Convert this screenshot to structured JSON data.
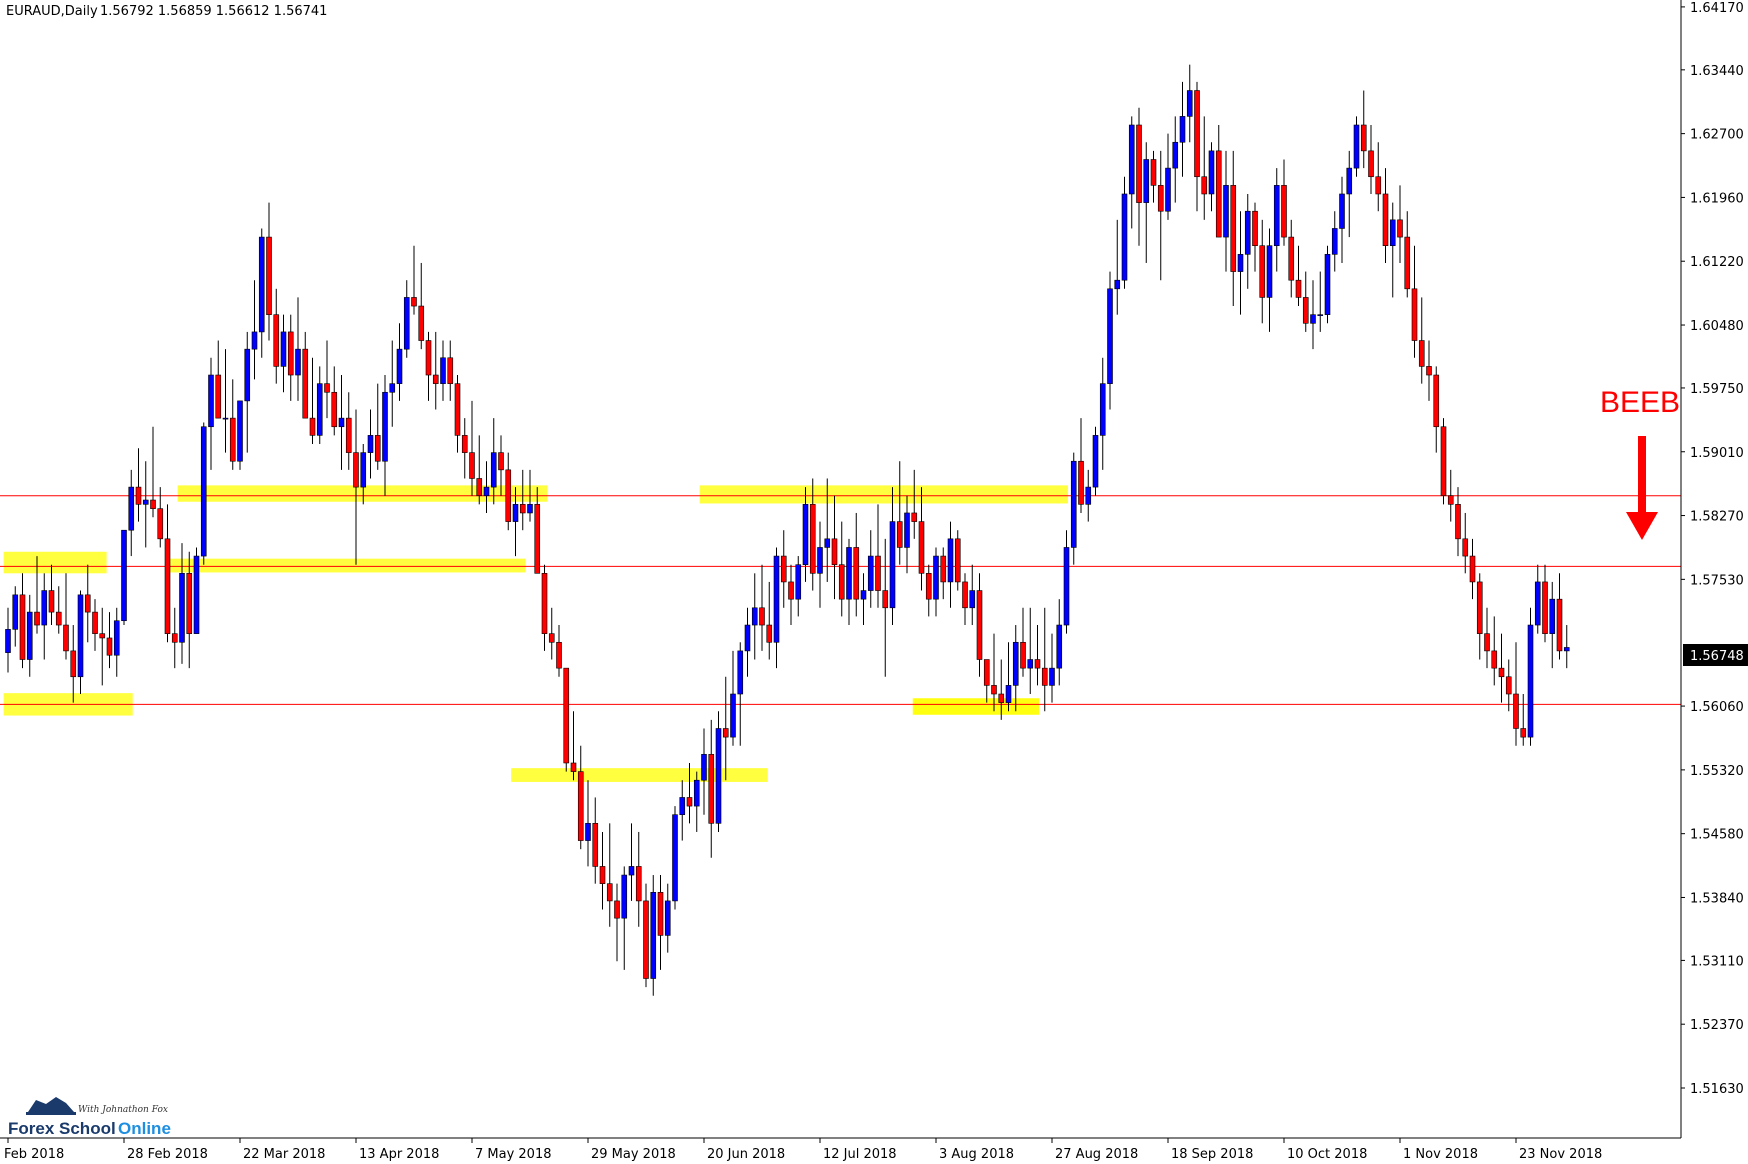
{
  "header": {
    "symbol_tf": "EURAUD,Daily",
    "ohlc": "1.56792 1.56859 1.56612 1.56741"
  },
  "annotation": {
    "text": "BEEB",
    "color": "#ff0000"
  },
  "current_price": "1.56748",
  "brand": {
    "name_dark": "Forex School",
    "name_light": "Online",
    "tagline": "With Johnathon Fox"
  },
  "colors": {
    "bull": "#0000ff",
    "bear": "#ff0000",
    "outline": "#000000",
    "level_line": "#ff0000",
    "zone": "#ffff00"
  },
  "chart_data": {
    "type": "candlestick",
    "symbol": "EURAUD",
    "timeframe": "Daily",
    "ylim": [
      1.5105,
      1.6425
    ],
    "y_ticks": [
      "1.64170",
      "1.63440",
      "1.62700",
      "1.61960",
      "1.61220",
      "1.60480",
      "1.59750",
      "1.59010",
      "1.58270",
      "1.57530",
      "1.56748",
      "1.56060",
      "1.55320",
      "1.54580",
      "1.53840",
      "1.53110",
      "1.52370",
      "1.51630"
    ],
    "x_ticks": [
      {
        "label": "Feb 2018",
        "bar": 0
      },
      {
        "label": "28 Feb 2018",
        "bar": 16
      },
      {
        "label": "22 Mar 2018",
        "bar": 32
      },
      {
        "label": "13 Apr 2018",
        "bar": 48
      },
      {
        "label": "7 May 2018",
        "bar": 64
      },
      {
        "label": "29 May 2018",
        "bar": 80
      },
      {
        "label": "20 Jun 2018",
        "bar": 96
      },
      {
        "label": "12 Jul 2018",
        "bar": 112
      },
      {
        "label": "3 Aug 2018",
        "bar": 128
      },
      {
        "label": "27 Aug 2018",
        "bar": 144
      },
      {
        "label": "18 Sep 2018",
        "bar": 160
      },
      {
        "label": "10 Oct 2018",
        "bar": 176
      },
      {
        "label": "1 Nov 2018",
        "bar": 192
      },
      {
        "label": "23 Nov 2018",
        "bar": 208
      }
    ],
    "levels": [
      1.585,
      1.5768,
      1.5608
    ],
    "zones": [
      {
        "bar_from": -0.6,
        "bar_to": 13.6,
        "low": 1.576,
        "high": 1.5785
      },
      {
        "bar_from": -0.6,
        "bar_to": 17.2,
        "low": 1.5595,
        "high": 1.5621
      },
      {
        "bar_from": 23.4,
        "bar_to": 74.4,
        "low": 1.5843,
        "high": 1.5862
      },
      {
        "bar_from": 22.0,
        "bar_to": 71.4,
        "low": 1.5761,
        "high": 1.5777
      },
      {
        "bar_from": 69.4,
        "bar_to": 104.8,
        "low": 1.5518,
        "high": 1.5534
      },
      {
        "bar_from": 95.4,
        "bar_to": 146.2,
        "low": 1.5841,
        "high": 1.5862
      },
      {
        "bar_from": 124.8,
        "bar_to": 142.2,
        "low": 1.5596,
        "high": 1.5615
      },
      {
        "bar_from": 124.8,
        "bar_to": 142.2,
        "low": 1.5596,
        "high": 1.5615
      }
    ],
    "ohlc": [
      [
        1.5668,
        1.572,
        1.5645,
        1.5695
      ],
      [
        1.5695,
        1.5745,
        1.5675,
        1.5735
      ],
      [
        1.5735,
        1.576,
        1.565,
        1.566
      ],
      [
        1.566,
        1.5735,
        1.564,
        1.5715
      ],
      [
        1.5715,
        1.578,
        1.569,
        1.57
      ],
      [
        1.57,
        1.576,
        1.566,
        1.574
      ],
      [
        1.574,
        1.577,
        1.57,
        1.5715
      ],
      [
        1.5715,
        1.5745,
        1.569,
        1.57
      ],
      [
        1.57,
        1.576,
        1.566,
        1.567
      ],
      [
        1.567,
        1.57,
        1.561,
        1.564
      ],
      [
        1.564,
        1.574,
        1.562,
        1.5735
      ],
      [
        1.5735,
        1.577,
        1.568,
        1.5715
      ],
      [
        1.5715,
        1.573,
        1.567,
        1.569
      ],
      [
        1.569,
        1.572,
        1.563,
        1.5685
      ],
      [
        1.5685,
        1.5715,
        1.565,
        1.5665
      ],
      [
        1.5665,
        1.572,
        1.564,
        1.5705
      ],
      [
        1.5705,
        1.581,
        1.57,
        1.581
      ],
      [
        1.581,
        1.588,
        1.578,
        1.586
      ],
      [
        1.586,
        1.5905,
        1.582,
        1.584
      ],
      [
        1.584,
        1.589,
        1.579,
        1.5845
      ],
      [
        1.5845,
        1.593,
        1.5825,
        1.5835
      ],
      [
        1.5835,
        1.586,
        1.579,
        1.58
      ],
      [
        1.58,
        1.584,
        1.568,
        1.569
      ],
      [
        1.569,
        1.572,
        1.565,
        1.568
      ],
      [
        1.568,
        1.5795,
        1.5655,
        1.576
      ],
      [
        1.576,
        1.5785,
        1.565,
        1.569
      ],
      [
        1.569,
        1.579,
        1.569,
        1.578
      ],
      [
        1.578,
        1.5935,
        1.577,
        1.593
      ],
      [
        1.593,
        1.601,
        1.588,
        1.599
      ],
      [
        1.599,
        1.603,
        1.594,
        1.594
      ],
      [
        1.594,
        1.602,
        1.59,
        1.594
      ],
      [
        1.594,
        1.5985,
        1.588,
        1.589
      ],
      [
        1.589,
        1.596,
        1.588,
        1.596
      ],
      [
        1.596,
        1.604,
        1.59,
        1.602
      ],
      [
        1.602,
        1.61,
        1.5985,
        1.604
      ],
      [
        1.604,
        1.616,
        1.601,
        1.615
      ],
      [
        1.615,
        1.619,
        1.603,
        1.606
      ],
      [
        1.606,
        1.609,
        1.598,
        1.6
      ],
      [
        1.6,
        1.606,
        1.597,
        1.604
      ],
      [
        1.604,
        1.606,
        1.596,
        1.599
      ],
      [
        1.599,
        1.608,
        1.596,
        1.602
      ],
      [
        1.602,
        1.604,
        1.594,
        1.594
      ],
      [
        1.594,
        1.601,
        1.591,
        1.592
      ],
      [
        1.592,
        1.6,
        1.591,
        1.598
      ],
      [
        1.598,
        1.603,
        1.594,
        1.597
      ],
      [
        1.597,
        1.6,
        1.592,
        1.593
      ],
      [
        1.593,
        1.599,
        1.588,
        1.594
      ],
      [
        1.594,
        1.597,
        1.588,
        1.59
      ],
      [
        1.59,
        1.595,
        1.577,
        1.586
      ],
      [
        1.586,
        1.591,
        1.584,
        1.59
      ],
      [
        1.59,
        1.595,
        1.587,
        1.592
      ],
      [
        1.592,
        1.598,
        1.588,
        1.589
      ],
      [
        1.589,
        1.599,
        1.585,
        1.597
      ],
      [
        1.597,
        1.603,
        1.593,
        1.598
      ],
      [
        1.598,
        1.605,
        1.596,
        1.602
      ],
      [
        1.602,
        1.61,
        1.601,
        1.608
      ],
      [
        1.608,
        1.614,
        1.606,
        1.607
      ],
      [
        1.607,
        1.612,
        1.602,
        1.603
      ],
      [
        1.603,
        1.604,
        1.596,
        1.599
      ],
      [
        1.599,
        1.604,
        1.595,
        1.598
      ],
      [
        1.598,
        1.603,
        1.596,
        1.601
      ],
      [
        1.601,
        1.603,
        1.596,
        1.598
      ],
      [
        1.598,
        1.599,
        1.59,
        1.592
      ],
      [
        1.592,
        1.594,
        1.587,
        1.59
      ],
      [
        1.59,
        1.596,
        1.585,
        1.587
      ],
      [
        1.587,
        1.592,
        1.584,
        1.585
      ],
      [
        1.585,
        1.589,
        1.583,
        1.586
      ],
      [
        1.586,
        1.594,
        1.584,
        1.59
      ],
      [
        1.59,
        1.592,
        1.585,
        1.588
      ],
      [
        1.588,
        1.59,
        1.581,
        1.582
      ],
      [
        1.582,
        1.586,
        1.578,
        1.584
      ],
      [
        1.584,
        1.588,
        1.581,
        1.583
      ],
      [
        1.583,
        1.588,
        1.582,
        1.584
      ],
      [
        1.584,
        1.586,
        1.576,
        1.576
      ],
      [
        1.576,
        1.577,
        1.567,
        1.569
      ],
      [
        1.569,
        1.572,
        1.566,
        1.568
      ],
      [
        1.568,
        1.57,
        1.564,
        1.565
      ],
      [
        1.565,
        1.564,
        1.553,
        1.554
      ],
      [
        1.554,
        1.56,
        1.552,
        1.553
      ],
      [
        1.553,
        1.556,
        1.544,
        1.545
      ],
      [
        1.545,
        1.552,
        1.542,
        1.547
      ],
      [
        1.547,
        1.55,
        1.54,
        1.542
      ],
      [
        1.542,
        1.546,
        1.537,
        1.54
      ],
      [
        1.54,
        1.547,
        1.535,
        1.538
      ],
      [
        1.538,
        1.54,
        1.531,
        1.536
      ],
      [
        1.536,
        1.542,
        1.53,
        1.541
      ],
      [
        1.541,
        1.547,
        1.538,
        1.542
      ],
      [
        1.542,
        1.546,
        1.535,
        1.538
      ],
      [
        1.538,
        1.54,
        1.528,
        1.529
      ],
      [
        1.529,
        1.541,
        1.527,
        1.539
      ],
      [
        1.539,
        1.541,
        1.53,
        1.534
      ],
      [
        1.534,
        1.54,
        1.532,
        1.538
      ],
      [
        1.538,
        1.549,
        1.537,
        1.548
      ],
      [
        1.548,
        1.552,
        1.545,
        1.55
      ],
      [
        1.55,
        1.554,
        1.547,
        1.549
      ],
      [
        1.549,
        1.553,
        1.546,
        1.552
      ],
      [
        1.552,
        1.558,
        1.548,
        1.555
      ],
      [
        1.555,
        1.559,
        1.543,
        1.547
      ],
      [
        1.547,
        1.56,
        1.546,
        1.558
      ],
      [
        1.558,
        1.564,
        1.552,
        1.557
      ],
      [
        1.557,
        1.567,
        1.556,
        1.562
      ],
      [
        1.562,
        1.568,
        1.556,
        1.567
      ],
      [
        1.567,
        1.572,
        1.564,
        1.57
      ],
      [
        1.57,
        1.576,
        1.566,
        1.572
      ],
      [
        1.572,
        1.577,
        1.567,
        1.57
      ],
      [
        1.57,
        1.575,
        1.566,
        1.568
      ],
      [
        1.568,
        1.579,
        1.565,
        1.578
      ],
      [
        1.578,
        1.581,
        1.572,
        1.575
      ],
      [
        1.575,
        1.577,
        1.57,
        1.573
      ],
      [
        1.573,
        1.578,
        1.571,
        1.577
      ],
      [
        1.577,
        1.586,
        1.575,
        1.584
      ],
      [
        1.584,
        1.587,
        1.574,
        1.576
      ],
      [
        1.576,
        1.582,
        1.572,
        1.579
      ],
      [
        1.579,
        1.587,
        1.575,
        1.58
      ],
      [
        1.58,
        1.585,
        1.573,
        1.577
      ],
      [
        1.577,
        1.582,
        1.571,
        1.573
      ],
      [
        1.573,
        1.58,
        1.57,
        1.579
      ],
      [
        1.579,
        1.583,
        1.571,
        1.573
      ],
      [
        1.573,
        1.576,
        1.57,
        1.574
      ],
      [
        1.574,
        1.581,
        1.572,
        1.578
      ],
      [
        1.578,
        1.584,
        1.572,
        1.574
      ],
      [
        1.574,
        1.58,
        1.564,
        1.572
      ],
      [
        1.572,
        1.586,
        1.57,
        1.582
      ],
      [
        1.582,
        1.589,
        1.577,
        1.579
      ],
      [
        1.579,
        1.585,
        1.576,
        1.583
      ],
      [
        1.583,
        1.588,
        1.58,
        1.582
      ],
      [
        1.582,
        1.586,
        1.574,
        1.576
      ],
      [
        1.576,
        1.577,
        1.571,
        1.573
      ],
      [
        1.573,
        1.579,
        1.571,
        1.578
      ],
      [
        1.578,
        1.579,
        1.573,
        1.575
      ],
      [
        1.575,
        1.582,
        1.572,
        1.58
      ],
      [
        1.58,
        1.581,
        1.574,
        1.575
      ],
      [
        1.575,
        1.576,
        1.57,
        1.572
      ],
      [
        1.572,
        1.577,
        1.57,
        1.574
      ],
      [
        1.574,
        1.576,
        1.564,
        1.566
      ],
      [
        1.566,
        1.565,
        1.561,
        1.563
      ],
      [
        1.563,
        1.569,
        1.56,
        1.562
      ],
      [
        1.562,
        1.566,
        1.559,
        1.561
      ],
      [
        1.561,
        1.568,
        1.56,
        1.563
      ],
      [
        1.563,
        1.57,
        1.56,
        1.568
      ],
      [
        1.568,
        1.572,
        1.564,
        1.565
      ],
      [
        1.565,
        1.572,
        1.562,
        1.566
      ],
      [
        1.566,
        1.57,
        1.563,
        1.565
      ],
      [
        1.565,
        1.572,
        1.56,
        1.563
      ],
      [
        1.563,
        1.569,
        1.561,
        1.565
      ],
      [
        1.565,
        1.573,
        1.563,
        1.57
      ],
      [
        1.57,
        1.581,
        1.569,
        1.579
      ],
      [
        1.579,
        1.59,
        1.577,
        1.589
      ],
      [
        1.589,
        1.594,
        1.583,
        1.584
      ],
      [
        1.584,
        1.588,
        1.582,
        1.586
      ],
      [
        1.586,
        1.593,
        1.585,
        1.592
      ],
      [
        1.592,
        1.601,
        1.588,
        1.598
      ],
      [
        1.598,
        1.611,
        1.595,
        1.609
      ],
      [
        1.609,
        1.617,
        1.606,
        1.61
      ],
      [
        1.61,
        1.622,
        1.609,
        1.62
      ],
      [
        1.62,
        1.629,
        1.616,
        1.628
      ],
      [
        1.628,
        1.63,
        1.614,
        1.619
      ],
      [
        1.619,
        1.626,
        1.612,
        1.624
      ],
      [
        1.624,
        1.625,
        1.619,
        1.621
      ],
      [
        1.621,
        1.625,
        1.61,
        1.618
      ],
      [
        1.618,
        1.627,
        1.617,
        1.623
      ],
      [
        1.623,
        1.629,
        1.619,
        1.626
      ],
      [
        1.626,
        1.633,
        1.622,
        1.629
      ],
      [
        1.629,
        1.635,
        1.626,
        1.632
      ],
      [
        1.632,
        1.633,
        1.618,
        1.622
      ],
      [
        1.622,
        1.629,
        1.617,
        1.62
      ],
      [
        1.62,
        1.626,
        1.618,
        1.625
      ],
      [
        1.625,
        1.628,
        1.615,
        1.615
      ],
      [
        1.615,
        1.625,
        1.611,
        1.621
      ],
      [
        1.621,
        1.625,
        1.607,
        1.611
      ],
      [
        1.611,
        1.618,
        1.606,
        1.613
      ],
      [
        1.613,
        1.62,
        1.609,
        1.618
      ],
      [
        1.618,
        1.619,
        1.611,
        1.614
      ],
      [
        1.614,
        1.617,
        1.605,
        1.608
      ],
      [
        1.608,
        1.616,
        1.604,
        1.614
      ],
      [
        1.614,
        1.623,
        1.611,
        1.621
      ],
      [
        1.621,
        1.624,
        1.614,
        1.615
      ],
      [
        1.615,
        1.617,
        1.608,
        1.61
      ],
      [
        1.61,
        1.614,
        1.607,
        1.608
      ],
      [
        1.608,
        1.611,
        1.604,
        1.605
      ],
      [
        1.605,
        1.61,
        1.602,
        1.606
      ],
      [
        1.606,
        1.611,
        1.604,
        1.606
      ],
      [
        1.606,
        1.614,
        1.605,
        1.613
      ],
      [
        1.613,
        1.618,
        1.611,
        1.616
      ],
      [
        1.616,
        1.622,
        1.612,
        1.62
      ],
      [
        1.62,
        1.625,
        1.615,
        1.623
      ],
      [
        1.623,
        1.629,
        1.622,
        1.628
      ],
      [
        1.628,
        1.632,
        1.623,
        1.625
      ],
      [
        1.625,
        1.628,
        1.62,
        1.622
      ],
      [
        1.622,
        1.626,
        1.618,
        1.62
      ],
      [
        1.62,
        1.623,
        1.612,
        1.614
      ],
      [
        1.614,
        1.619,
        1.608,
        1.617
      ],
      [
        1.617,
        1.621,
        1.612,
        1.615
      ],
      [
        1.615,
        1.618,
        1.608,
        1.609
      ],
      [
        1.609,
        1.614,
        1.601,
        1.603
      ],
      [
        1.603,
        1.608,
        1.598,
        1.6
      ],
      [
        1.6,
        1.603,
        1.596,
        1.599
      ],
      [
        1.599,
        1.6,
        1.59,
        1.593
      ],
      [
        1.593,
        1.594,
        1.584,
        1.585
      ],
      [
        1.585,
        1.588,
        1.582,
        1.584
      ],
      [
        1.584,
        1.586,
        1.578,
        1.58
      ],
      [
        1.58,
        1.583,
        1.576,
        1.578
      ],
      [
        1.578,
        1.58,
        1.573,
        1.575
      ],
      [
        1.575,
        1.576,
        1.566,
        1.569
      ],
      [
        1.569,
        1.572,
        1.565,
        1.567
      ],
      [
        1.567,
        1.571,
        1.563,
        1.565
      ],
      [
        1.565,
        1.569,
        1.561,
        1.564
      ],
      [
        1.564,
        1.566,
        1.56,
        1.562
      ],
      [
        1.562,
        1.568,
        1.556,
        1.558
      ],
      [
        1.558,
        1.562,
        1.556,
        1.557
      ],
      [
        1.557,
        1.572,
        1.556,
        1.57
      ],
      [
        1.57,
        1.577,
        1.569,
        1.575
      ],
      [
        1.575,
        1.577,
        1.568,
        1.569
      ],
      [
        1.569,
        1.575,
        1.565,
        1.573
      ],
      [
        1.573,
        1.576,
        1.566,
        1.567
      ],
      [
        1.567,
        1.57,
        1.565,
        1.5674
      ]
    ]
  }
}
